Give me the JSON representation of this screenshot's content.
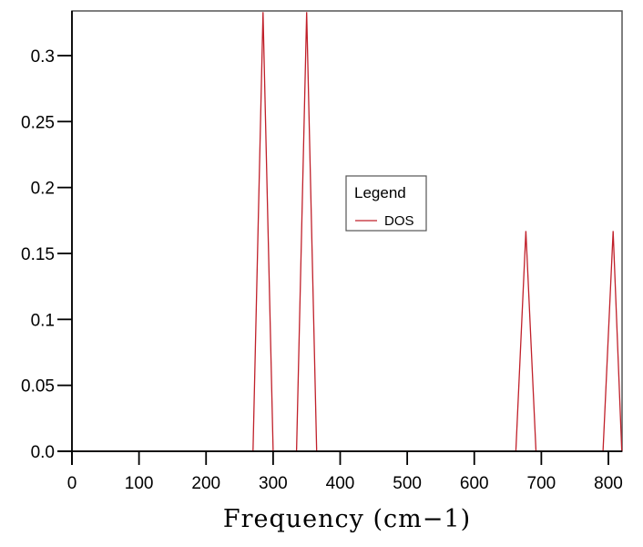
{
  "chart_data": {
    "type": "line",
    "title": "",
    "xlabel": "Frequency (cm−1)",
    "ylabel": "",
    "xlim": [
      0,
      820
    ],
    "ylim": [
      0,
      0.334
    ],
    "x_ticks": [
      0,
      100,
      200,
      300,
      400,
      500,
      600,
      700,
      800
    ],
    "x_tick_labels": [
      "0",
      "100",
      "200",
      "300",
      "400",
      "500",
      "600",
      "700",
      "800"
    ],
    "y_ticks": [
      0.0,
      0.05,
      0.1,
      0.15,
      0.2,
      0.25,
      0.3
    ],
    "y_tick_labels": [
      "0.0",
      "0.05",
      "0.1",
      "0.15",
      "0.2",
      "0.25",
      "0.3"
    ],
    "grid": false,
    "legend": {
      "title": "Legend",
      "position": "center",
      "entries": [
        "DOS"
      ]
    },
    "series": [
      {
        "name": "DOS",
        "color": "#c0202a",
        "x": [
          0,
          270,
          285,
          300,
          335,
          350,
          365,
          662,
          677,
          692,
          792,
          807,
          820
        ],
        "y": [
          0,
          0,
          0.333,
          0,
          0,
          0.333,
          0,
          0,
          0.167,
          0,
          0,
          0.167,
          0
        ]
      }
    ]
  },
  "legend": {
    "title": "Legend",
    "entry": "DOS"
  },
  "axes": {
    "xlabel": "Frequency (cm−1)"
  }
}
